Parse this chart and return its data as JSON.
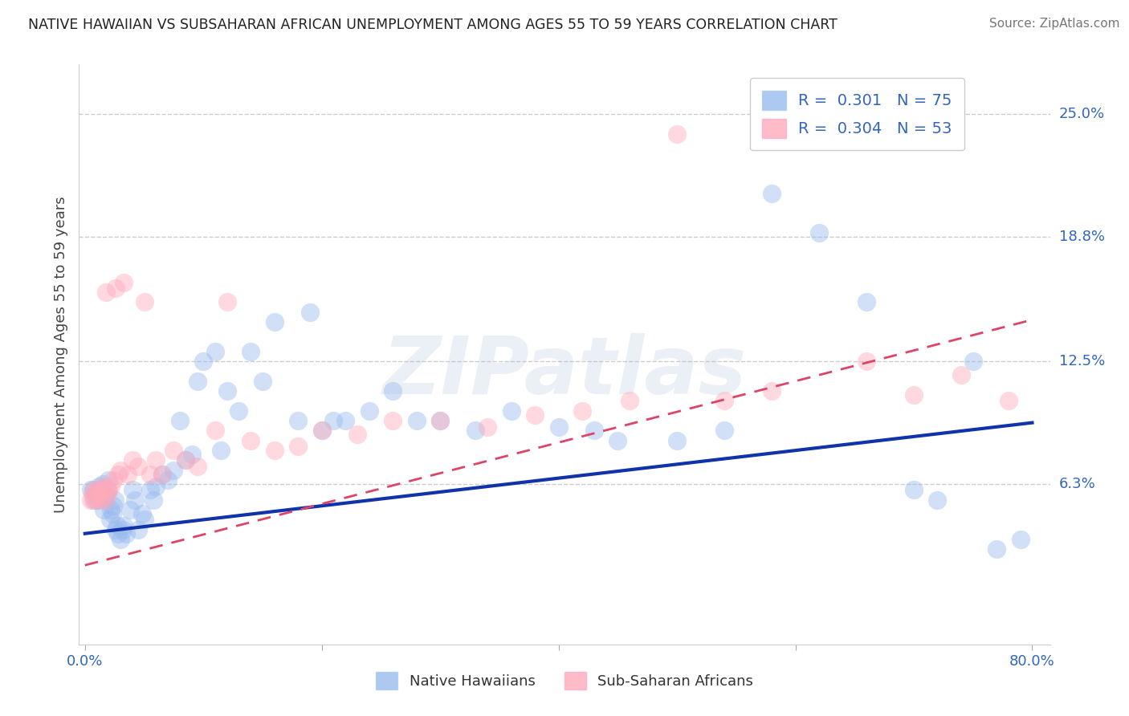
{
  "title": "NATIVE HAWAIIAN VS SUBSAHARAN AFRICAN UNEMPLOYMENT AMONG AGES 55 TO 59 YEARS CORRELATION CHART",
  "source": "Source: ZipAtlas.com",
  "ylabel": "Unemployment Among Ages 55 to 59 years",
  "xlim": [
    -0.005,
    0.815
  ],
  "ylim": [
    -0.018,
    0.275
  ],
  "xtick_labels": [
    "0.0%",
    "",
    "",
    "",
    "80.0%"
  ],
  "xtick_values": [
    0.0,
    0.2,
    0.4,
    0.6,
    0.8
  ],
  "ytick_labels": [
    "6.3%",
    "12.5%",
    "18.8%",
    "25.0%"
  ],
  "ytick_values": [
    0.063,
    0.125,
    0.188,
    0.25
  ],
  "r_hawaiian": "0.301",
  "n_hawaiian": 75,
  "r_african": "0.304",
  "n_african": 53,
  "color_hawaiian": "#99BBEE",
  "color_african": "#FFAABB",
  "trendline_hawaiian_color": "#1133AA",
  "trendline_african_color": "#DD4466",
  "background_color": "#FFFFFF",
  "hawaiian_slope": 0.07,
  "hawaiian_intercept": 0.038,
  "african_slope": 0.155,
  "african_intercept": 0.022,
  "hawaiian_x": [
    0.005,
    0.007,
    0.008,
    0.009,
    0.01,
    0.011,
    0.012,
    0.013,
    0.014,
    0.015,
    0.016,
    0.017,
    0.018,
    0.019,
    0.02,
    0.021,
    0.022,
    0.023,
    0.024,
    0.025,
    0.026,
    0.027,
    0.028,
    0.03,
    0.032,
    0.033,
    0.035,
    0.038,
    0.04,
    0.042,
    0.045,
    0.048,
    0.05,
    0.055,
    0.058,
    0.06,
    0.065,
    0.07,
    0.075,
    0.08,
    0.085,
    0.09,
    0.095,
    0.1,
    0.11,
    0.115,
    0.12,
    0.13,
    0.14,
    0.15,
    0.16,
    0.18,
    0.19,
    0.2,
    0.21,
    0.22,
    0.24,
    0.26,
    0.28,
    0.3,
    0.33,
    0.36,
    0.4,
    0.43,
    0.45,
    0.5,
    0.54,
    0.58,
    0.62,
    0.66,
    0.7,
    0.72,
    0.75,
    0.77,
    0.79
  ],
  "hawaiian_y": [
    0.06,
    0.06,
    0.055,
    0.058,
    0.055,
    0.057,
    0.062,
    0.058,
    0.06,
    0.063,
    0.05,
    0.055,
    0.058,
    0.06,
    0.065,
    0.045,
    0.05,
    0.048,
    0.052,
    0.055,
    0.04,
    0.042,
    0.038,
    0.035,
    0.04,
    0.042,
    0.038,
    0.05,
    0.06,
    0.055,
    0.04,
    0.048,
    0.045,
    0.06,
    0.055,
    0.062,
    0.068,
    0.065,
    0.07,
    0.095,
    0.075,
    0.078,
    0.115,
    0.125,
    0.13,
    0.08,
    0.11,
    0.1,
    0.13,
    0.115,
    0.145,
    0.095,
    0.15,
    0.09,
    0.095,
    0.095,
    0.1,
    0.11,
    0.095,
    0.095,
    0.09,
    0.1,
    0.092,
    0.09,
    0.085,
    0.085,
    0.09,
    0.21,
    0.19,
    0.155,
    0.06,
    0.055,
    0.125,
    0.03,
    0.035
  ],
  "african_x": [
    0.005,
    0.006,
    0.007,
    0.008,
    0.009,
    0.01,
    0.011,
    0.012,
    0.013,
    0.014,
    0.015,
    0.016,
    0.017,
    0.018,
    0.019,
    0.02,
    0.022,
    0.024,
    0.026,
    0.028,
    0.03,
    0.033,
    0.036,
    0.04,
    0.045,
    0.05,
    0.055,
    0.06,
    0.065,
    0.075,
    0.085,
    0.095,
    0.11,
    0.12,
    0.14,
    0.16,
    0.18,
    0.2,
    0.23,
    0.26,
    0.3,
    0.34,
    0.38,
    0.42,
    0.46,
    0.5,
    0.54,
    0.58,
    0.62,
    0.66,
    0.7,
    0.74,
    0.78
  ],
  "african_y": [
    0.055,
    0.058,
    0.055,
    0.06,
    0.056,
    0.058,
    0.057,
    0.06,
    0.055,
    0.058,
    0.06,
    0.062,
    0.055,
    0.16,
    0.058,
    0.06,
    0.062,
    0.065,
    0.162,
    0.068,
    0.07,
    0.165,
    0.068,
    0.075,
    0.072,
    0.155,
    0.068,
    0.075,
    0.068,
    0.08,
    0.075,
    0.072,
    0.09,
    0.155,
    0.085,
    0.08,
    0.082,
    0.09,
    0.088,
    0.095,
    0.095,
    0.092,
    0.098,
    0.1,
    0.105,
    0.24,
    0.105,
    0.11,
    0.25,
    0.125,
    0.108,
    0.118,
    0.105
  ]
}
